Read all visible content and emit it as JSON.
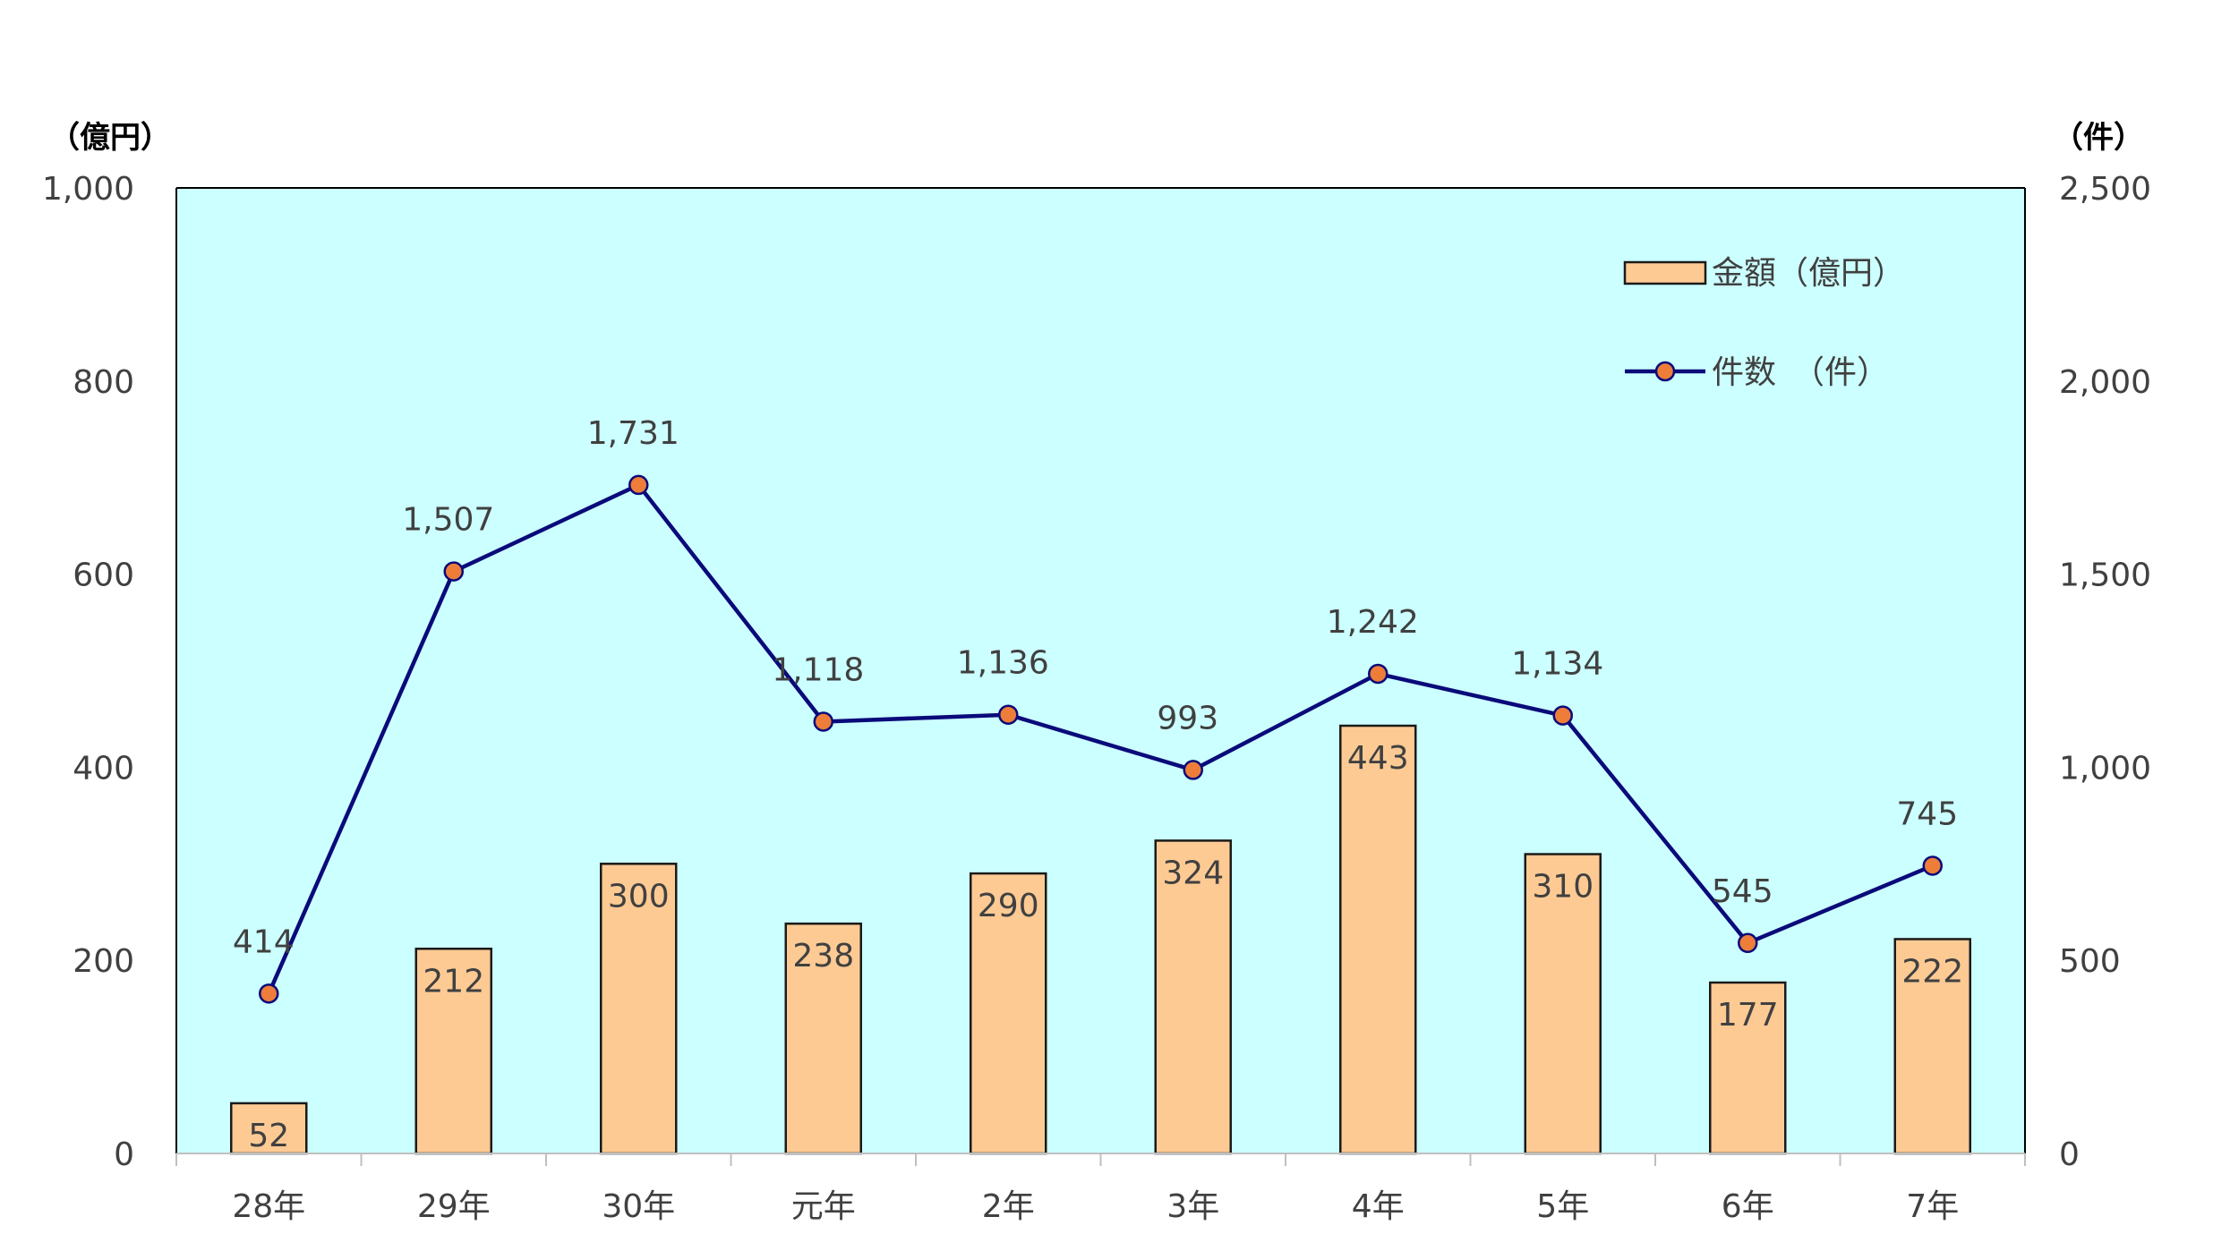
{
  "chart_data": {
    "type": "bar",
    "categories": [
      "28年",
      "29年",
      "30年",
      "元年",
      "2年",
      "3年",
      "4年",
      "5年",
      "6年",
      "7年"
    ],
    "series": [
      {
        "name": "金額（億円）",
        "type": "bar",
        "axis": "left",
        "values": [
          52,
          212,
          300,
          238,
          290,
          324,
          443,
          310,
          177,
          222
        ],
        "labels": [
          "52",
          "212",
          "300",
          "238",
          "290",
          "324",
          "443",
          "310",
          "177",
          "222"
        ]
      },
      {
        "name": "件数　（件）",
        "type": "line",
        "axis": "right",
        "values": [
          414,
          1507,
          1731,
          1118,
          1136,
          993,
          1242,
          1134,
          545,
          745
        ],
        "labels": [
          "414",
          "1,507",
          "1,731",
          "1,118",
          "1,136",
          "993",
          "1,242",
          "1,134",
          "545",
          "745"
        ]
      }
    ],
    "y_left": {
      "unit": "（億円）",
      "lim": [
        0,
        1000
      ],
      "ticks": [
        0,
        200,
        400,
        600,
        800,
        1000
      ],
      "tick_labels": [
        "0",
        "200",
        "400",
        "600",
        "800",
        "1,000"
      ]
    },
    "y_right": {
      "unit": "（件）",
      "lim": [
        0,
        2500
      ],
      "ticks": [
        0,
        500,
        1000,
        1500,
        2000,
        2500
      ],
      "tick_labels": [
        "0",
        "500",
        "1,000",
        "1,500",
        "2,000",
        "2,500"
      ]
    },
    "grid": false,
    "legend": "top-right",
    "colors": {
      "plot_background": "#ccffff",
      "bar_fill": "#fdca94",
      "bar_edge": "#1a1a1a",
      "line": "#0a0a7a",
      "marker_fill": "#ee7d3a",
      "text": "#404040"
    }
  }
}
